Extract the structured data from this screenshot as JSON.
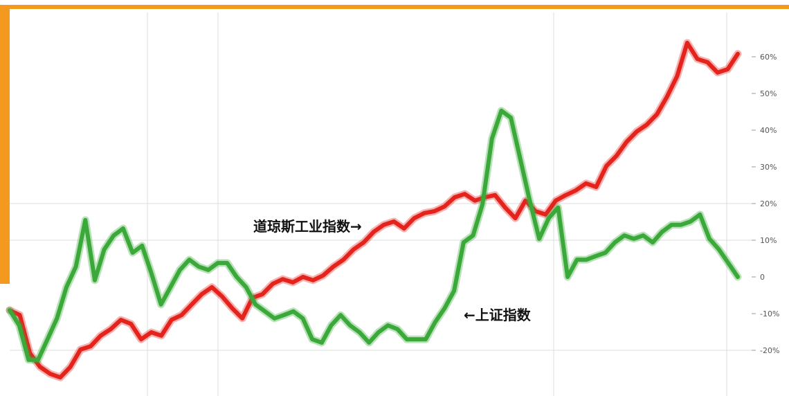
{
  "colors": {
    "frame_accent": "#f39a1e",
    "dow_line": "#e3231c",
    "shanghai_line": "#3aa93a",
    "grid": "#dddddd"
  },
  "chart_data": {
    "type": "line",
    "title": "",
    "xlabel": "",
    "ylabel": "",
    "ylim": [
      -32,
      72
    ],
    "y_axis_position": "right",
    "grid": true,
    "y_ticks": [
      {
        "value": 60,
        "label": "60%"
      },
      {
        "value": 50,
        "label": "50%"
      },
      {
        "value": 40,
        "label": "40%"
      },
      {
        "value": 30,
        "label": "30%"
      },
      {
        "value": 20,
        "label": "20%"
      },
      {
        "value": 10,
        "label": "10%"
      },
      {
        "value": 0,
        "label": "0"
      },
      {
        "value": -10,
        "label": "-10%"
      },
      {
        "value": -20,
        "label": "-20%"
      }
    ],
    "series": [
      {
        "name": "道琼斯工业指数",
        "color_key": "dow_line",
        "values": [
          -9.1,
          -10.4,
          -20.8,
          -24.5,
          -26.4,
          -27.4,
          -24.5,
          -19.8,
          -18.9,
          -16.0,
          -14.2,
          -11.7,
          -12.8,
          -17.0,
          -15.1,
          -16.0,
          -11.7,
          -10.4,
          -7.5,
          -4.7,
          -2.8,
          -5.3,
          -8.5,
          -11.3,
          -5.7,
          -4.7,
          -1.9,
          -0.6,
          -1.5,
          0.0,
          -0.9,
          0.4,
          2.8,
          4.7,
          7.5,
          9.4,
          12.3,
          14.2,
          15.1,
          13.2,
          16.0,
          17.4,
          17.9,
          19.2,
          21.7,
          22.6,
          20.8,
          21.7,
          22.3,
          18.9,
          16.0,
          20.8,
          17.9,
          17.0,
          20.8,
          22.3,
          23.6,
          25.5,
          24.5,
          30.2,
          33.0,
          36.8,
          39.6,
          41.5,
          44.3,
          49.1,
          54.7,
          63.8,
          59.4,
          58.5,
          55.7,
          56.6,
          60.8
        ]
      },
      {
        "name": "上证指数",
        "color_key": "shanghai_line",
        "values": [
          -9.1,
          -13.2,
          -22.6,
          -22.6,
          -17.0,
          -11.3,
          -2.8,
          2.8,
          15.5,
          -0.9,
          7.5,
          11.3,
          13.2,
          6.6,
          8.5,
          0.9,
          -7.5,
          -2.8,
          1.9,
          4.7,
          2.8,
          1.9,
          3.8,
          3.8,
          0.0,
          -2.8,
          -7.5,
          -9.4,
          -11.3,
          -10.4,
          -9.4,
          -11.3,
          -17.0,
          -17.9,
          -13.2,
          -10.4,
          -13.2,
          -15.1,
          -17.9,
          -15.1,
          -13.2,
          -14.2,
          -17.0,
          -17.0,
          -17.0,
          -12.3,
          -8.5,
          -3.8,
          9.4,
          11.3,
          19.8,
          37.7,
          45.3,
          43.4,
          32.1,
          20.8,
          10.4,
          16.0,
          18.9,
          0.0,
          4.7,
          4.7,
          5.7,
          6.6,
          9.4,
          11.3,
          10.4,
          11.3,
          9.4,
          12.3,
          14.2,
          14.2,
          15.1,
          17.0,
          10.4,
          7.5,
          3.8,
          0.0
        ]
      }
    ],
    "annotations": [
      {
        "text": "道琼斯工业指数→",
        "series": "道琼斯工业指数"
      },
      {
        "text": "←上证指数",
        "series": "上证指数"
      }
    ]
  }
}
